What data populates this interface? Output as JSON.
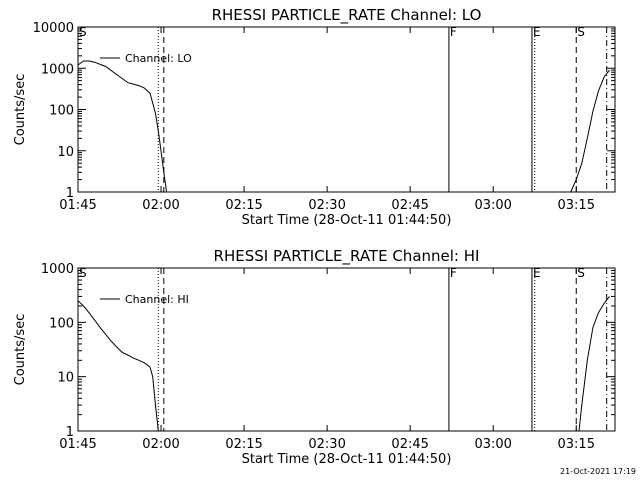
{
  "chart_data": [
    {
      "type": "line",
      "title": "RHESSI PARTICLE_RATE Channel: LO",
      "xlabel": "Start Time (28-Oct-11 01:44:50)",
      "ylabel": "Counts/sec",
      "yscale": "log",
      "ylim": [
        1,
        10000
      ],
      "xlim": [
        "01:45",
        "03:22"
      ],
      "x_ticks": [
        "01:45",
        "02:00",
        "02:15",
        "02:30",
        "02:45",
        "03:00",
        "03:15"
      ],
      "y_ticks": [
        "1",
        "10",
        "100",
        "1000",
        "10000"
      ],
      "legend": {
        "label": "Channel: LO",
        "placement": "top-left"
      },
      "markers": [
        {
          "label": "S",
          "time": "01:45",
          "style": "none"
        },
        {
          "label": "",
          "time": "01:59:30",
          "style": "dotted"
        },
        {
          "label": "",
          "time": "02:00:30",
          "style": "dashed"
        },
        {
          "label": "F",
          "time": "02:52",
          "style": "solid"
        },
        {
          "label": "E",
          "time": "03:07",
          "style": "solid"
        },
        {
          "label": "",
          "time": "03:07:30",
          "style": "dotted"
        },
        {
          "label": "S",
          "time": "03:15",
          "style": "dashed"
        },
        {
          "label": "",
          "time": "03:20:30",
          "style": "dashdot"
        }
      ],
      "series": [
        {
          "segments": [
            [
              [
                "01:45",
                1200
              ],
              [
                "01:46",
                1500
              ],
              [
                "01:47",
                1500
              ],
              [
                "01:48",
                1400
              ],
              [
                "01:50",
                1100
              ],
              [
                "01:52",
                700
              ],
              [
                "01:54",
                450
              ],
              [
                "01:56",
                380
              ],
              [
                "01:57",
                330
              ],
              [
                "01:58",
                250
              ],
              [
                "01:59",
                80
              ],
              [
                "01:59:30",
                30
              ],
              [
                "02:00",
                10
              ],
              [
                "02:00:30",
                3
              ],
              [
                "02:01",
                1
              ]
            ],
            [
              [
                "03:14",
                1
              ],
              [
                "03:15",
                2
              ],
              [
                "03:16",
                5
              ],
              [
                "03:17",
                20
              ],
              [
                "03:18",
                90
              ],
              [
                "03:19",
                280
              ],
              [
                "03:20",
                600
              ],
              [
                "03:21",
                900
              ]
            ]
          ]
        }
      ]
    },
    {
      "type": "line",
      "title": "RHESSI PARTICLE_RATE Channel: HI",
      "xlabel": "Start Time (28-Oct-11 01:44:50)",
      "ylabel": "Counts/sec",
      "yscale": "log",
      "ylim": [
        1,
        1000
      ],
      "xlim": [
        "01:45",
        "03:22"
      ],
      "x_ticks": [
        "01:45",
        "02:00",
        "02:15",
        "02:30",
        "02:45",
        "03:00",
        "03:15"
      ],
      "y_ticks": [
        "1",
        "10",
        "100",
        "1000"
      ],
      "legend": {
        "label": "Channel: HI",
        "placement": "top-left"
      },
      "markers": [
        {
          "label": "S",
          "time": "01:45",
          "style": "none"
        },
        {
          "label": "",
          "time": "01:59:30",
          "style": "dotted"
        },
        {
          "label": "",
          "time": "02:00:30",
          "style": "dashed"
        },
        {
          "label": "F",
          "time": "02:52",
          "style": "solid"
        },
        {
          "label": "E",
          "time": "03:07",
          "style": "solid"
        },
        {
          "label": "",
          "time": "03:07:30",
          "style": "dotted"
        },
        {
          "label": "S",
          "time": "03:15",
          "style": "dashed"
        },
        {
          "label": "",
          "time": "03:20:30",
          "style": "dashdot"
        }
      ],
      "series": [
        {
          "segments": [
            [
              [
                "01:45",
                250
              ],
              [
                "01:46",
                200
              ],
              [
                "01:47",
                150
              ],
              [
                "01:48",
                110
              ],
              [
                "01:49",
                80
              ],
              [
                "01:50",
                60
              ],
              [
                "01:51",
                45
              ],
              [
                "01:52",
                35
              ],
              [
                "01:53",
                28
              ],
              [
                "01:54",
                25
              ],
              [
                "01:55",
                22
              ],
              [
                "01:56",
                20
              ],
              [
                "01:57",
                18
              ],
              [
                "01:58",
                15
              ],
              [
                "01:58:30",
                10
              ],
              [
                "01:59",
                3
              ],
              [
                "01:59:30",
                1
              ]
            ],
            [
              [
                "03:15:30",
                1
              ],
              [
                "03:16",
                3
              ],
              [
                "03:17",
                20
              ],
              [
                "03:18",
                80
              ],
              [
                "03:19",
                150
              ],
              [
                "03:20",
                220
              ],
              [
                "03:21",
                300
              ]
            ]
          ]
        }
      ]
    }
  ],
  "footer": {
    "timestamp": "21-Oct-2021 17:19"
  }
}
